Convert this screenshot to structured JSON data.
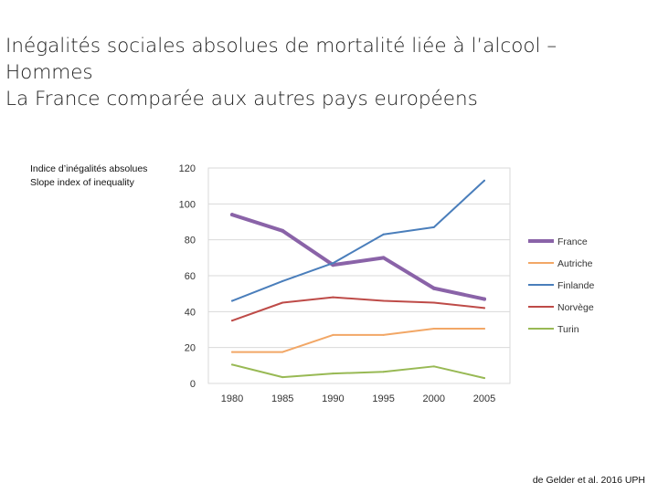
{
  "title": {
    "line1": "Inégalités sociales absolues de mortalité liée à l’alcool –",
    "line2": "Hommes",
    "line3": "La France comparée aux autres pays européens"
  },
  "chart_data": {
    "type": "line",
    "ylabel": [
      "Indice d’inégalités absolues",
      "Slope index of inequality"
    ],
    "xlabel": "",
    "x": [
      "1980",
      "1985",
      "1990",
      "1995",
      "2000",
      "2005"
    ],
    "ylim": [
      0,
      120
    ],
    "yticks": [
      "0",
      "20",
      "40",
      "60",
      "80",
      "100",
      "120"
    ],
    "grid": true,
    "legend_position": "right",
    "series": [
      {
        "name": "France",
        "color": "#8a63a8",
        "values": [
          94,
          85,
          66,
          70,
          53,
          47
        ]
      },
      {
        "name": "Autriche",
        "color": "#f2a766",
        "values": [
          17.5,
          17.5,
          27,
          27,
          30.5,
          30.5
        ]
      },
      {
        "name": "Finlande",
        "color": "#4a7ebb",
        "values": [
          46,
          57,
          67,
          83,
          87,
          113
        ]
      },
      {
        "name": "Norvège",
        "color": "#be4b48",
        "values": [
          35,
          45,
          48,
          46,
          45,
          42
        ]
      },
      {
        "name": "Turin",
        "color": "#98b954",
        "values": [
          10.5,
          3.5,
          5.5,
          6.5,
          9.5,
          3
        ]
      }
    ]
  },
  "source": "de Gelder et al. 2016 UPH"
}
